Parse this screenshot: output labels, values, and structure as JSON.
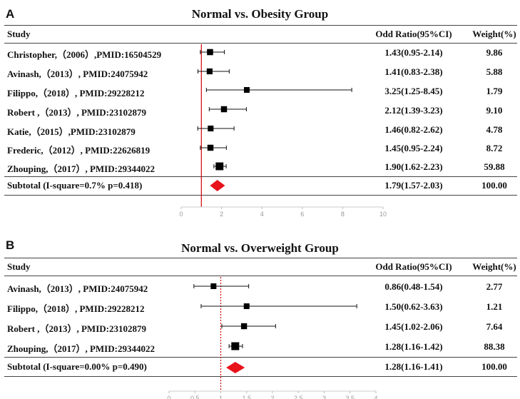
{
  "chart_data": [
    {
      "type": "forest",
      "panel": "A",
      "title": "Normal vs. Obesity Group",
      "headers": {
        "study": "Study",
        "or": "Odd Ratio(95%CI)",
        "weight": "Weight(%)"
      },
      "studies": [
        {
          "label": "Christopher,（2006）,PMID:16504529",
          "or": 1.43,
          "lo": 0.95,
          "hi": 2.14,
          "ci_text": "1.43(0.95-2.14)",
          "weight": "9.86"
        },
        {
          "label": "Avinash,（2013）, PMID:24075942",
          "or": 1.41,
          "lo": 0.83,
          "hi": 2.38,
          "ci_text": "1.41(0.83-2.38)",
          "weight": "5.88"
        },
        {
          "label": "Filippo,（2018）, PMID:29228212",
          "or": 3.25,
          "lo": 1.25,
          "hi": 8.45,
          "ci_text": "3.25(1.25-8.45)",
          "weight": "1.79"
        },
        {
          "label": "Robert ,（2013）, PMID:23102879",
          "or": 2.12,
          "lo": 1.39,
          "hi": 3.23,
          "ci_text": "2.12(1.39-3.23)",
          "weight": "9.10"
        },
        {
          "label": "Katie,（2015）,PMID:23102879",
          "or": 1.46,
          "lo": 0.82,
          "hi": 2.62,
          "ci_text": "1.46(0.82-2.62)",
          "weight": "4.78"
        },
        {
          "label": "Frederic,（2012）, PMID:22626819",
          "or": 1.45,
          "lo": 0.95,
          "hi": 2.24,
          "ci_text": "1.45(0.95-2.24)",
          "weight": "8.72"
        },
        {
          "label": "Zhouping,（2017）, PMID:29344022",
          "or": 1.9,
          "lo": 1.62,
          "hi": 2.23,
          "ci_text": "1.90(1.62-2.23)",
          "weight": "59.88"
        }
      ],
      "subtotal": {
        "label": "Subtotal (I-square=0.7% p=0.418)",
        "or": 1.79,
        "lo": 1.57,
        "hi": 2.03,
        "ci_text": "1.79(1.57-2.03)",
        "weight": "100.00"
      },
      "xlim": [
        0,
        10
      ],
      "xticks": [
        0,
        2,
        4,
        6,
        8,
        10
      ],
      "reference_line": 1,
      "reference_color": "#d40000",
      "marker_color": "#000000",
      "summary_color": "#e8121b"
    },
    {
      "type": "forest",
      "panel": "B",
      "title": "Normal vs. Overweight Group",
      "headers": {
        "study": "Study",
        "or": "Odd Ratio(95%CI)",
        "weight": "Weight(%)"
      },
      "studies": [
        {
          "label": "Avinash,（2013）, PMID:24075942",
          "or": 0.86,
          "lo": 0.48,
          "hi": 1.54,
          "ci_text": "0.86(0.48-1.54)",
          "weight": "2.77"
        },
        {
          "label": "Filippo,（2018）, PMID:29228212",
          "or": 1.5,
          "lo": 0.62,
          "hi": 3.63,
          "ci_text": "1.50(0.62-3.63)",
          "weight": "1.21"
        },
        {
          "label": "Robert ,（2013）, PMID:23102879",
          "or": 1.45,
          "lo": 1.02,
          "hi": 2.06,
          "ci_text": "1.45(1.02-2.06)",
          "weight": "7.64"
        },
        {
          "label": "Zhouping,（2017）, PMID:29344022",
          "or": 1.28,
          "lo": 1.16,
          "hi": 1.42,
          "ci_text": "1.28(1.16-1.42)",
          "weight": "88.38"
        }
      ],
      "subtotal": {
        "label": "Subtotal (I-square=0.00% p=0.490)",
        "or": 1.28,
        "lo": 1.16,
        "hi": 1.41,
        "ci_text": "1.28(1.16-1.41)",
        "weight": "100.00"
      },
      "xlim": [
        0,
        4
      ],
      "xticks": [
        0,
        0.5,
        1,
        1.5,
        2,
        2.5,
        3,
        3.5,
        4
      ],
      "reference_line": 1,
      "reference_color": "#d40000",
      "marker_color": "#000000",
      "summary_color": "#e8121b"
    }
  ]
}
